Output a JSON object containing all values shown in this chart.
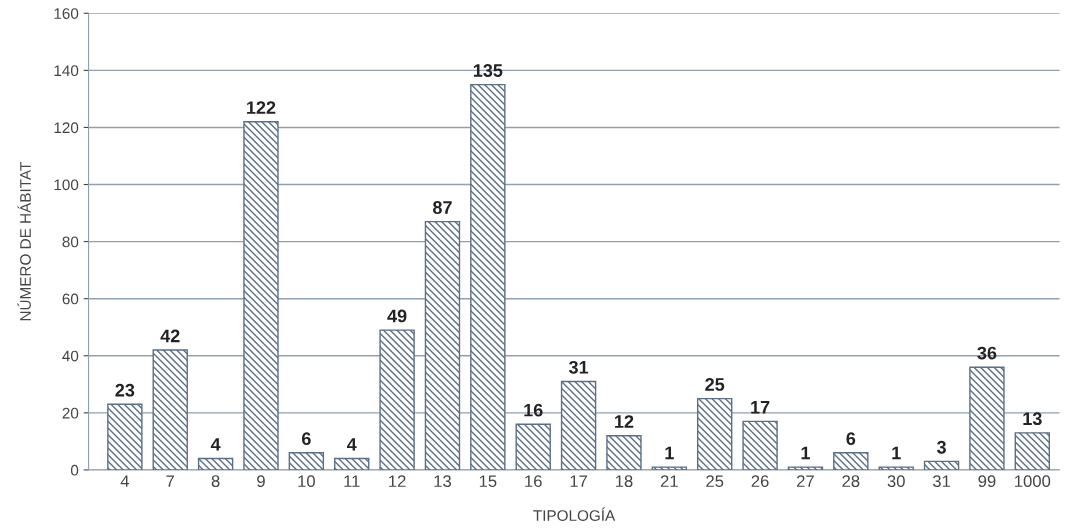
{
  "chart_data": {
    "type": "bar",
    "xlabel": "TIPOLOGÍA",
    "ylabel": "NÚMERO DE HÁBITAT",
    "categories": [
      "4",
      "7",
      "8",
      "9",
      "10",
      "11",
      "12",
      "13",
      "15",
      "16",
      "17",
      "18",
      "21",
      "25",
      "26",
      "27",
      "28",
      "30",
      "31",
      "99",
      "1000"
    ],
    "values": [
      23,
      42,
      4,
      122,
      6,
      4,
      49,
      87,
      135,
      16,
      31,
      12,
      1,
      25,
      17,
      1,
      6,
      1,
      3,
      36,
      13
    ],
    "color": "#5a6e86",
    "ylim": [
      0,
      160
    ],
    "yticks": [
      0,
      20,
      40,
      60,
      80,
      100,
      120,
      140,
      160
    ],
    "grid": "y",
    "data_labels": true
  }
}
